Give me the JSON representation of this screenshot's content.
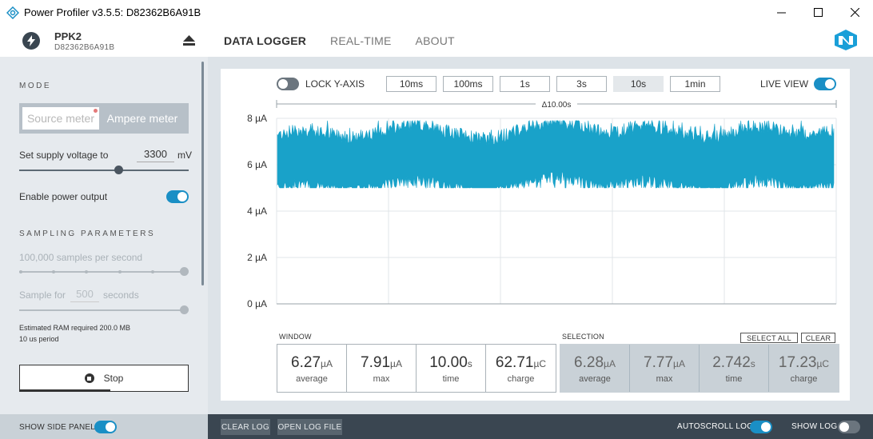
{
  "window": {
    "title": "Power Profiler v3.5.5: D82362B6A91B"
  },
  "device": {
    "name": "PPK2",
    "serial": "D82362B6A91B"
  },
  "nav": {
    "tabs": [
      "DATA LOGGER",
      "REAL-TIME",
      "ABOUT"
    ],
    "active": "DATA LOGGER"
  },
  "side": {
    "mode_title": "MODE",
    "source_meter": "Source meter",
    "ampere_meter": "Ampere meter",
    "selected_mode": "Ampere meter",
    "voltage_label": "Set supply voltage to",
    "voltage_value": "3300",
    "voltage_unit": "mV",
    "power_output_label": "Enable power output",
    "power_output_on": true,
    "sampling_title": "SAMPLING PARAMETERS",
    "samples_per_second": "100,000 samples per second",
    "sample_for_label": "Sample for",
    "sample_for_value": "500",
    "sample_for_unit": "seconds",
    "ram_note": "Estimated RAM required 200.0 MB",
    "period_note": "10 us period",
    "stop_label": "Stop",
    "show_side_panel": "SHOW SIDE PANEL"
  },
  "toolbar": {
    "lock_y_axis": "LOCK Y-AXIS",
    "zoom_windows": [
      "10ms",
      "100ms",
      "1s",
      "3s",
      "10s",
      "1min"
    ],
    "active_window": "10s",
    "live_view": "LIVE VIEW",
    "window_span": "Δ10.00s"
  },
  "chart_data": {
    "type": "line",
    "y_ticks": [
      "8 µA",
      "6 µA",
      "4 µA",
      "2 µA",
      "0 µA"
    ],
    "ylim": [
      0,
      8
    ],
    "yunit": "µA",
    "x_span_seconds": 10,
    "grid": true,
    "series": [
      {
        "color": "#19a2c9",
        "center_values": [
          6.1,
          6.3,
          6.2,
          6.1,
          6.0,
          6.1,
          6.4,
          6.5,
          6.4,
          6.2,
          6.0,
          5.9,
          6.1,
          6.4,
          6.6,
          6.6,
          6.4,
          6.2,
          6.3,
          6.5,
          6.4,
          6.2,
          6.0,
          6.0,
          6.3,
          6.5,
          6.4,
          6.1,
          6.1,
          6.3
        ],
        "band_low": 5.0,
        "band_high": 7.9
      }
    ]
  },
  "stats": {
    "window_title": "WINDOW",
    "window": [
      {
        "value": "6.27",
        "unit": "µA",
        "name": "average"
      },
      {
        "value": "7.91",
        "unit": "µA",
        "name": "max"
      },
      {
        "value": "10.00",
        "unit": "s",
        "name": "time"
      },
      {
        "value": "62.71",
        "unit": "µC",
        "name": "charge"
      }
    ],
    "selection_title": "SELECTION",
    "select_all": "SELECT ALL",
    "clear": "CLEAR",
    "selection": [
      {
        "value": "6.28",
        "unit": "µA",
        "name": "average"
      },
      {
        "value": "7.77",
        "unit": "µA",
        "name": "max"
      },
      {
        "value": "2.742",
        "unit": "s",
        "name": "time"
      },
      {
        "value": "17.23",
        "unit": "µC",
        "name": "charge"
      }
    ]
  },
  "bottom": {
    "clear_log": "CLEAR LOG",
    "open_log_file": "OPEN LOG FILE",
    "autoscroll_log": "AUTOSCROLL LOG",
    "autoscroll_on": true,
    "show_log": "SHOW LOG",
    "show_log_on": false
  },
  "colors": {
    "accent": "#1a8fc5",
    "trace": "#19a2c9",
    "dark": "#3a4651"
  }
}
